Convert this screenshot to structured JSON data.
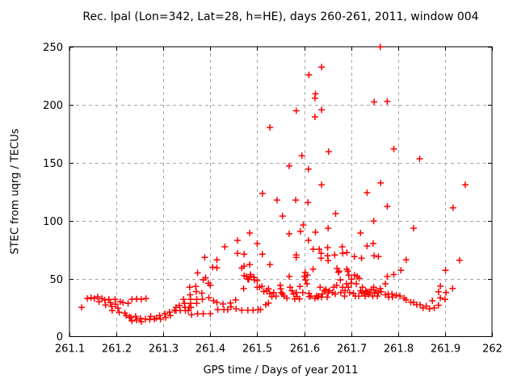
{
  "chart_data": {
    "type": "scatter",
    "title": "Rec. lpal (Lon=342, Lat=28, h=HE), days 260-261, 2011, window 004",
    "xlabel": "GPS time / Days of year 2011",
    "ylabel": "STEC from uqrg / TECUs",
    "xlim": [
      261.1,
      262
    ],
    "ylim": [
      0,
      250
    ],
    "grid": true,
    "legend": "none",
    "xticks": {
      "values": [
        261.1,
        261.2,
        261.3,
        261.4,
        261.5,
        261.6,
        261.7,
        261.8,
        261.9,
        262
      ],
      "labels": [
        "261.1",
        "261.2",
        "261.3",
        "261.4",
        "261.5",
        "261.6",
        "261.7",
        "261.8",
        "261.9",
        "262"
      ]
    },
    "yticks": {
      "values": [
        0,
        50,
        100,
        150,
        200,
        250
      ],
      "labels": [
        "0",
        "50",
        "100",
        "150",
        "200",
        "250"
      ]
    },
    "marker": {
      "shape": "plus",
      "color": "#ff0000",
      "size": 9
    },
    "grid_color": "#a6a6a6",
    "axis_color": "#000000",
    "points": [
      [
        261.126,
        25.1
      ],
      [
        261.138,
        32.8
      ],
      [
        261.146,
        33.5
      ],
      [
        261.153,
        32.8
      ],
      [
        261.16,
        34.2
      ],
      [
        261.163,
        30.0
      ],
      [
        261.169,
        32.8
      ],
      [
        261.175,
        31.4
      ],
      [
        261.177,
        27.2
      ],
      [
        261.184,
        32.1
      ],
      [
        261.187,
        29.3
      ],
      [
        261.19,
        25.8
      ],
      [
        261.191,
        22.3
      ],
      [
        261.197,
        32.1
      ],
      [
        261.198,
        27.9
      ],
      [
        261.203,
        24.4
      ],
      [
        261.206,
        20.9
      ],
      [
        261.208,
        30.0
      ],
      [
        261.214,
        29.3
      ],
      [
        261.218,
        20.2
      ],
      [
        261.221,
        18.1
      ],
      [
        261.225,
        28.6
      ],
      [
        261.228,
        16.7
      ],
      [
        261.231,
        16.5
      ],
      [
        261.233,
        32.1
      ],
      [
        261.233,
        13.5
      ],
      [
        261.241,
        17.4
      ],
      [
        261.243,
        32.5
      ],
      [
        261.243,
        14.2
      ],
      [
        261.251,
        15.8
      ],
      [
        261.253,
        32.1
      ],
      [
        261.253,
        12.8
      ],
      [
        261.262,
        15.1
      ],
      [
        261.263,
        32.8
      ],
      [
        261.271,
        14.6
      ],
      [
        261.273,
        17.4
      ],
      [
        261.281,
        15.1
      ],
      [
        261.285,
        16.0
      ],
      [
        261.292,
        18.1
      ],
      [
        261.294,
        15.1
      ],
      [
        261.303,
        19.7
      ],
      [
        261.305,
        16.5
      ],
      [
        261.313,
        21.1
      ],
      [
        261.315,
        18.1
      ],
      [
        261.324,
        22.7
      ],
      [
        261.327,
        25.1
      ],
      [
        261.327,
        22.3
      ],
      [
        261.334,
        26.8
      ],
      [
        261.336,
        22.3
      ],
      [
        261.343,
        32.1
      ],
      [
        261.345,
        28.6
      ],
      [
        261.346,
        25.1
      ],
      [
        261.347,
        22.3
      ],
      [
        261.353,
        22.3
      ],
      [
        261.355,
        25.1
      ],
      [
        261.356,
        42.5
      ],
      [
        261.357,
        36.0
      ],
      [
        261.358,
        32.1
      ],
      [
        261.358,
        28.6
      ],
      [
        261.359,
        25.1
      ],
      [
        261.36,
        18.8
      ],
      [
        261.369,
        43.2
      ],
      [
        261.37,
        38.8
      ],
      [
        261.371,
        32.1
      ],
      [
        261.371,
        28.6
      ],
      [
        261.373,
        19.7
      ],
      [
        261.373,
        54.9
      ],
      [
        261.382,
        37.4
      ],
      [
        261.383,
        32.1
      ],
      [
        261.385,
        19.7
      ],
      [
        261.385,
        49.0
      ],
      [
        261.388,
        68.3
      ],
      [
        261.39,
        50.7
      ],
      [
        261.396,
        46.0
      ],
      [
        261.397,
        33.5
      ],
      [
        261.4,
        19.7
      ],
      [
        261.4,
        44.2
      ],
      [
        261.405,
        59.8
      ],
      [
        261.407,
        30.9
      ],
      [
        261.414,
        59.3
      ],
      [
        261.414,
        29.3
      ],
      [
        261.414,
        66.2
      ],
      [
        261.416,
        23.2
      ],
      [
        261.427,
        28.1
      ],
      [
        261.429,
        23.2
      ],
      [
        261.431,
        77.4
      ],
      [
        261.437,
        23.2
      ],
      [
        261.443,
        29.0
      ],
      [
        261.444,
        25.6
      ],
      [
        261.454,
        31.6
      ],
      [
        261.455,
        23.9
      ],
      [
        261.458,
        83.0
      ],
      [
        261.458,
        71.8
      ],
      [
        261.467,
        22.7
      ],
      [
        261.467,
        59.1
      ],
      [
        261.471,
        41.4
      ],
      [
        261.472,
        52.5
      ],
      [
        261.472,
        71.1
      ],
      [
        261.472,
        60.7
      ],
      [
        261.477,
        51.8
      ],
      [
        261.48,
        22.7
      ],
      [
        261.48,
        49.5
      ],
      [
        261.482,
        49.3
      ],
      [
        261.484,
        89.3
      ],
      [
        261.484,
        62.1
      ],
      [
        261.485,
        51.8
      ],
      [
        261.486,
        53.5
      ],
      [
        261.491,
        22.7
      ],
      [
        261.493,
        51.1
      ],
      [
        261.494,
        48.8
      ],
      [
        261.5,
        48.3
      ],
      [
        261.5,
        80.2
      ],
      [
        261.5,
        42.5
      ],
      [
        261.502,
        23.2
      ],
      [
        261.505,
        42.5
      ],
      [
        261.507,
        23.2
      ],
      [
        261.51,
        43.2
      ],
      [
        261.511,
        123.4
      ],
      [
        261.511,
        71.1
      ],
      [
        261.514,
        38.8
      ],
      [
        261.518,
        27.4
      ],
      [
        261.52,
        39.5
      ],
      [
        261.524,
        41.1
      ],
      [
        261.524,
        28.8
      ],
      [
        261.527,
        62.1
      ],
      [
        261.527,
        37.0
      ],
      [
        261.527,
        180.4
      ],
      [
        261.531,
        34.4
      ],
      [
        261.535,
        37.9
      ],
      [
        261.54,
        34.9
      ],
      [
        261.542,
        117.8
      ],
      [
        261.549,
        44.2
      ],
      [
        261.55,
        41.1
      ],
      [
        261.551,
        37.9
      ],
      [
        261.554,
        36.7
      ],
      [
        261.554,
        103.9
      ],
      [
        261.557,
        34.9
      ],
      [
        261.563,
        33.2
      ],
      [
        261.568,
        51.8
      ],
      [
        261.568,
        88.6
      ],
      [
        261.568,
        147.1
      ],
      [
        261.57,
        42.5
      ],
      [
        261.574,
        39.5
      ],
      [
        261.577,
        36.7
      ],
      [
        261.58,
        32.5
      ],
      [
        261.582,
        117.8
      ],
      [
        261.583,
        37.9
      ],
      [
        261.583,
        194.8
      ],
      [
        261.583,
        70.4
      ],
      [
        261.583,
        68.3
      ],
      [
        261.585,
        34.4
      ],
      [
        261.59,
        32.5
      ],
      [
        261.591,
        43.2
      ],
      [
        261.592,
        90.7
      ],
      [
        261.595,
        156.0
      ],
      [
        261.597,
        37.9
      ],
      [
        261.598,
        96.2
      ],
      [
        261.6,
        51.8
      ],
      [
        261.602,
        55.3
      ],
      [
        261.603,
        48.8
      ],
      [
        261.606,
        45.5
      ],
      [
        261.607,
        53.0
      ],
      [
        261.608,
        115.7
      ],
      [
        261.609,
        83.0
      ],
      [
        261.609,
        144.4
      ],
      [
        261.61,
        37.2
      ],
      [
        261.61,
        225.7
      ],
      [
        261.611,
        34.4
      ],
      [
        261.614,
        34.9
      ],
      [
        261.619,
        58.1
      ],
      [
        261.619,
        75.3
      ],
      [
        261.623,
        33.2
      ],
      [
        261.623,
        205.7
      ],
      [
        261.623,
        189.5
      ],
      [
        261.624,
        209.4
      ],
      [
        261.624,
        90.0
      ],
      [
        261.626,
        34.9
      ],
      [
        261.629,
        34.0
      ],
      [
        261.631,
        34.9
      ],
      [
        261.632,
        75.3
      ],
      [
        261.634,
        42.5
      ],
      [
        261.636,
        71.8
      ],
      [
        261.636,
        67.6
      ],
      [
        261.637,
        34.0
      ],
      [
        261.637,
        232.4
      ],
      [
        261.637,
        195.5
      ],
      [
        261.637,
        130.9
      ],
      [
        261.639,
        36.7
      ],
      [
        261.643,
        39.5
      ],
      [
        261.646,
        40.7
      ],
      [
        261.649,
        34.0
      ],
      [
        261.65,
        76.7
      ],
      [
        261.65,
        69.7
      ],
      [
        261.651,
        37.9
      ],
      [
        261.651,
        93.4
      ],
      [
        261.651,
        65.5
      ],
      [
        261.652,
        159.5
      ],
      [
        261.654,
        39.5
      ],
      [
        261.66,
        37.9
      ],
      [
        261.663,
        42.5
      ],
      [
        261.665,
        70.4
      ],
      [
        261.666,
        36.7
      ],
      [
        261.667,
        106.0
      ],
      [
        261.669,
        44.2
      ],
      [
        261.67,
        58.8
      ],
      [
        261.673,
        55.3
      ],
      [
        261.674,
        56.5
      ],
      [
        261.677,
        48.8
      ],
      [
        261.678,
        37.9
      ],
      [
        261.681,
        77.4
      ],
      [
        261.682,
        42.5
      ],
      [
        261.682,
        71.8
      ],
      [
        261.686,
        34.9
      ],
      [
        261.687,
        39.5
      ],
      [
        261.69,
        45.5
      ],
      [
        261.691,
        58.1
      ],
      [
        261.691,
        72.5
      ],
      [
        261.693,
        56.5
      ],
      [
        261.694,
        42.5
      ],
      [
        261.695,
        53.0
      ],
      [
        261.697,
        37.9
      ],
      [
        261.7,
        46.0
      ],
      [
        261.701,
        49.5
      ],
      [
        261.705,
        37.2
      ],
      [
        261.707,
        53.0
      ],
      [
        261.707,
        69.0
      ],
      [
        261.709,
        34.9
      ],
      [
        261.711,
        45.5
      ],
      [
        261.713,
        51.8
      ],
      [
        261.716,
        34.9
      ],
      [
        261.717,
        50.2
      ],
      [
        261.72,
        39.5
      ],
      [
        261.72,
        89.3
      ],
      [
        261.722,
        67.6
      ],
      [
        261.723,
        37.9
      ],
      [
        261.724,
        42.5
      ],
      [
        261.727,
        37.2
      ],
      [
        261.73,
        34.9
      ],
      [
        261.731,
        39.5
      ],
      [
        261.734,
        38.6
      ],
      [
        261.734,
        124.1
      ],
      [
        261.734,
        78.1
      ],
      [
        261.737,
        36.3
      ],
      [
        261.74,
        37.9
      ],
      [
        261.743,
        40.7
      ],
      [
        261.746,
        34.9
      ],
      [
        261.747,
        80.2
      ],
      [
        261.748,
        99.7
      ],
      [
        261.748,
        42.5
      ],
      [
        261.749,
        69.7
      ],
      [
        261.749,
        202.4
      ],
      [
        261.75,
        37.9
      ],
      [
        261.753,
        39.5
      ],
      [
        261.756,
        34.9
      ],
      [
        261.758,
        37.9
      ],
      [
        261.758,
        69.0
      ],
      [
        261.762,
        41.4
      ],
      [
        261.762,
        249.9
      ],
      [
        261.763,
        132.5
      ],
      [
        261.764,
        38.6
      ],
      [
        261.773,
        45.5
      ],
      [
        261.773,
        36.0
      ],
      [
        261.777,
        51.8
      ],
      [
        261.777,
        112.3
      ],
      [
        261.777,
        202.9
      ],
      [
        261.779,
        36.7
      ],
      [
        261.78,
        34.0
      ],
      [
        261.787,
        36.7
      ],
      [
        261.788,
        34.0
      ],
      [
        261.791,
        53.5
      ],
      [
        261.791,
        161.8
      ],
      [
        261.796,
        35.6
      ],
      [
        261.804,
        34.9
      ],
      [
        261.806,
        57.2
      ],
      [
        261.813,
        33.2
      ],
      [
        261.817,
        31.6
      ],
      [
        261.817,
        66.2
      ],
      [
        261.827,
        29.7
      ],
      [
        261.833,
        29.3
      ],
      [
        261.833,
        93.4
      ],
      [
        261.84,
        27.4
      ],
      [
        261.846,
        153.4
      ],
      [
        261.847,
        27.4
      ],
      [
        261.853,
        24.6
      ],
      [
        261.86,
        26.3
      ],
      [
        261.867,
        23.9
      ],
      [
        261.873,
        30.9
      ],
      [
        261.877,
        24.6
      ],
      [
        261.886,
        27.0
      ],
      [
        261.886,
        38.6
      ],
      [
        261.89,
        43.5
      ],
      [
        261.89,
        33.3
      ],
      [
        261.9,
        32.1
      ],
      [
        261.901,
        57.2
      ],
      [
        261.902,
        37.9
      ],
      [
        261.916,
        41.5
      ],
      [
        261.917,
        111.0
      ],
      [
        261.931,
        65.8
      ],
      [
        261.943,
        130.9
      ]
    ]
  }
}
